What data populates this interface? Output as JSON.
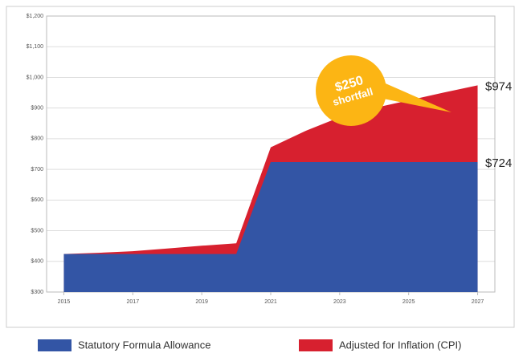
{
  "chart_data": {
    "type": "area",
    "x": [
      2015,
      2016,
      2017,
      2018,
      2019,
      2020,
      2021,
      2022,
      2023,
      2024,
      2025,
      2026,
      2027
    ],
    "series": [
      {
        "name": "Adjusted for Inflation (CPI)",
        "color": "#d7202f",
        "values": [
          424,
          428,
          433,
          442,
          451,
          459,
          772,
          825,
          870,
          900,
          925,
          950,
          974
        ]
      },
      {
        "name": "Statutory Formula Allowance",
        "color": "#3355a5",
        "values": [
          424,
          424,
          424,
          424,
          424,
          424,
          724,
          724,
          724,
          724,
          724,
          724,
          724
        ]
      }
    ],
    "legend_order": [
      1,
      0
    ],
    "xlim": [
      2014.5,
      2027.5
    ],
    "xticks": [
      2015,
      2017,
      2019,
      2021,
      2023,
      2025,
      2027
    ],
    "ylim": [
      300,
      1200
    ],
    "yticks": [
      {
        "value": 300,
        "label": "$300"
      },
      {
        "value": 400,
        "label": "$400"
      },
      {
        "value": 500,
        "label": "$500"
      },
      {
        "value": 600,
        "label": "$600"
      },
      {
        "value": 700,
        "label": "$700"
      },
      {
        "value": 800,
        "label": "$800"
      },
      {
        "value": 900,
        "label": "$900"
      },
      {
        "value": 1000,
        "label": "$1,000"
      },
      {
        "value": 1100,
        "label": "$1,100"
      },
      {
        "value": 1200,
        "label": "$1,200"
      }
    ],
    "grid": true,
    "end_labels": [
      "$974",
      "$724"
    ],
    "callout": {
      "lines": [
        "$250",
        "shortfall"
      ],
      "color": "#fcb514"
    }
  }
}
